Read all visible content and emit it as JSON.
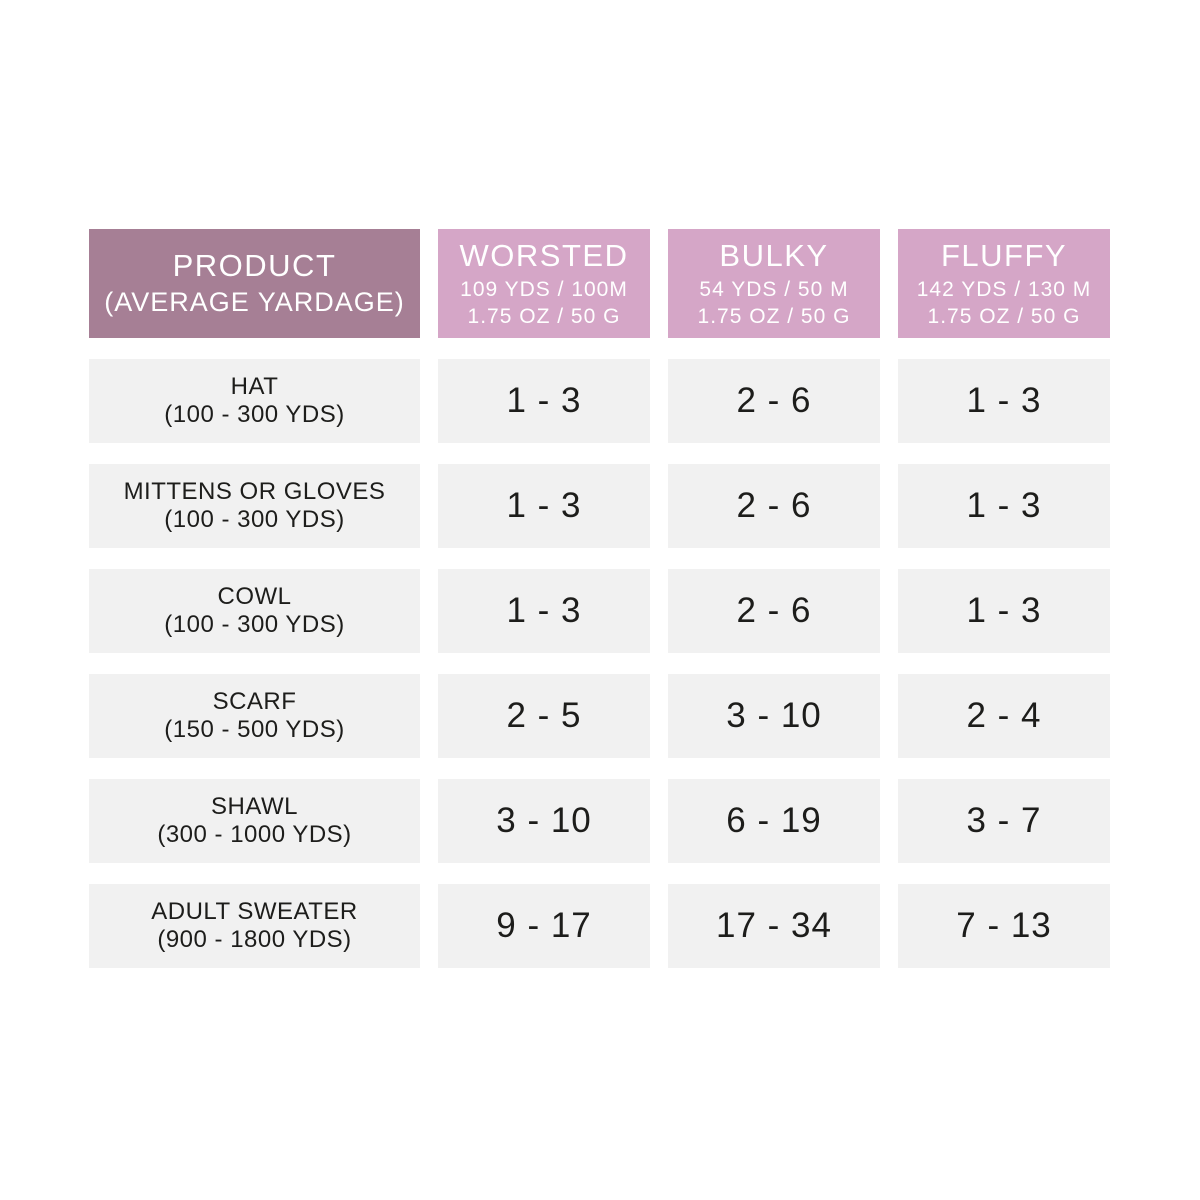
{
  "colors": {
    "background": "#ffffff",
    "product_header_bg": "#a67f95",
    "yarn_header_bg": "#d5a6c7",
    "row_cell_bg": "#f1f1f1",
    "header_text": "#ffffff",
    "cell_text": "#1d1d1b"
  },
  "table": {
    "header": {
      "product_title": "PRODUCT",
      "product_subtitle": "(AVERAGE YARDAGE)",
      "yarns": [
        {
          "name": "WORSTED",
          "spec1": "109 YDS / 100M",
          "spec2": "1.75 OZ / 50 G"
        },
        {
          "name": "BULKY",
          "spec1": "54 YDS / 50 M",
          "spec2": "1.75 OZ / 50 G"
        },
        {
          "name": "FLUFFY",
          "spec1": "142 YDS / 130 M",
          "spec2": "1.75 OZ / 50 G"
        }
      ]
    },
    "rows": [
      {
        "product": "HAT",
        "yardage": "(100 - 300 YDS)",
        "worsted": "1 - 3",
        "bulky": "2 - 6",
        "fluffy": "1 - 3"
      },
      {
        "product": "MITTENS OR GLOVES",
        "yardage": "(100 - 300 YDS)",
        "worsted": "1 - 3",
        "bulky": "2 - 6",
        "fluffy": "1 - 3"
      },
      {
        "product": "COWL",
        "yardage": "(100 - 300 YDS)",
        "worsted": "1 - 3",
        "bulky": "2 - 6",
        "fluffy": "1 - 3"
      },
      {
        "product": "SCARF",
        "yardage": "(150 - 500 YDS)",
        "worsted": "2 - 5",
        "bulky": "3 - 10",
        "fluffy": "2 - 4"
      },
      {
        "product": "SHAWL",
        "yardage": "(300 - 1000 YDS)",
        "worsted": "3 - 10",
        "bulky": "6 - 19",
        "fluffy": "3 - 7"
      },
      {
        "product": "ADULT SWEATER",
        "yardage": "(900 - 1800 YDS)",
        "worsted": "9 - 17",
        "bulky": "17 - 34",
        "fluffy": "7 - 13"
      }
    ]
  },
  "chart_data": {
    "type": "table",
    "columns": [
      "PRODUCT (AVERAGE YARDAGE)",
      "WORSTED 109 YDS / 100M 1.75 OZ / 50 G",
      "BULKY 54 YDS / 50 M 1.75 OZ / 50 G",
      "FLUFFY 142 YDS / 130 M 1.75 OZ / 50 G"
    ],
    "rows": [
      [
        "HAT (100 - 300 YDS)",
        "1 - 3",
        "2 - 6",
        "1 - 3"
      ],
      [
        "MITTENS OR GLOVES (100 - 300 YDS)",
        "1 - 3",
        "2 - 6",
        "1 - 3"
      ],
      [
        "COWL (100 - 300 YDS)",
        "1 - 3",
        "2 - 6",
        "1 - 3"
      ],
      [
        "SCARF (150 - 500 YDS)",
        "2 - 5",
        "3 - 10",
        "2 - 4"
      ],
      [
        "SHAWL (300 - 1000 YDS)",
        "3 - 10",
        "6 - 19",
        "3 - 7"
      ],
      [
        "ADULT SWEATER (900 - 1800 YDS)",
        "9 - 17",
        "17 - 34",
        "7 - 13"
      ]
    ]
  }
}
